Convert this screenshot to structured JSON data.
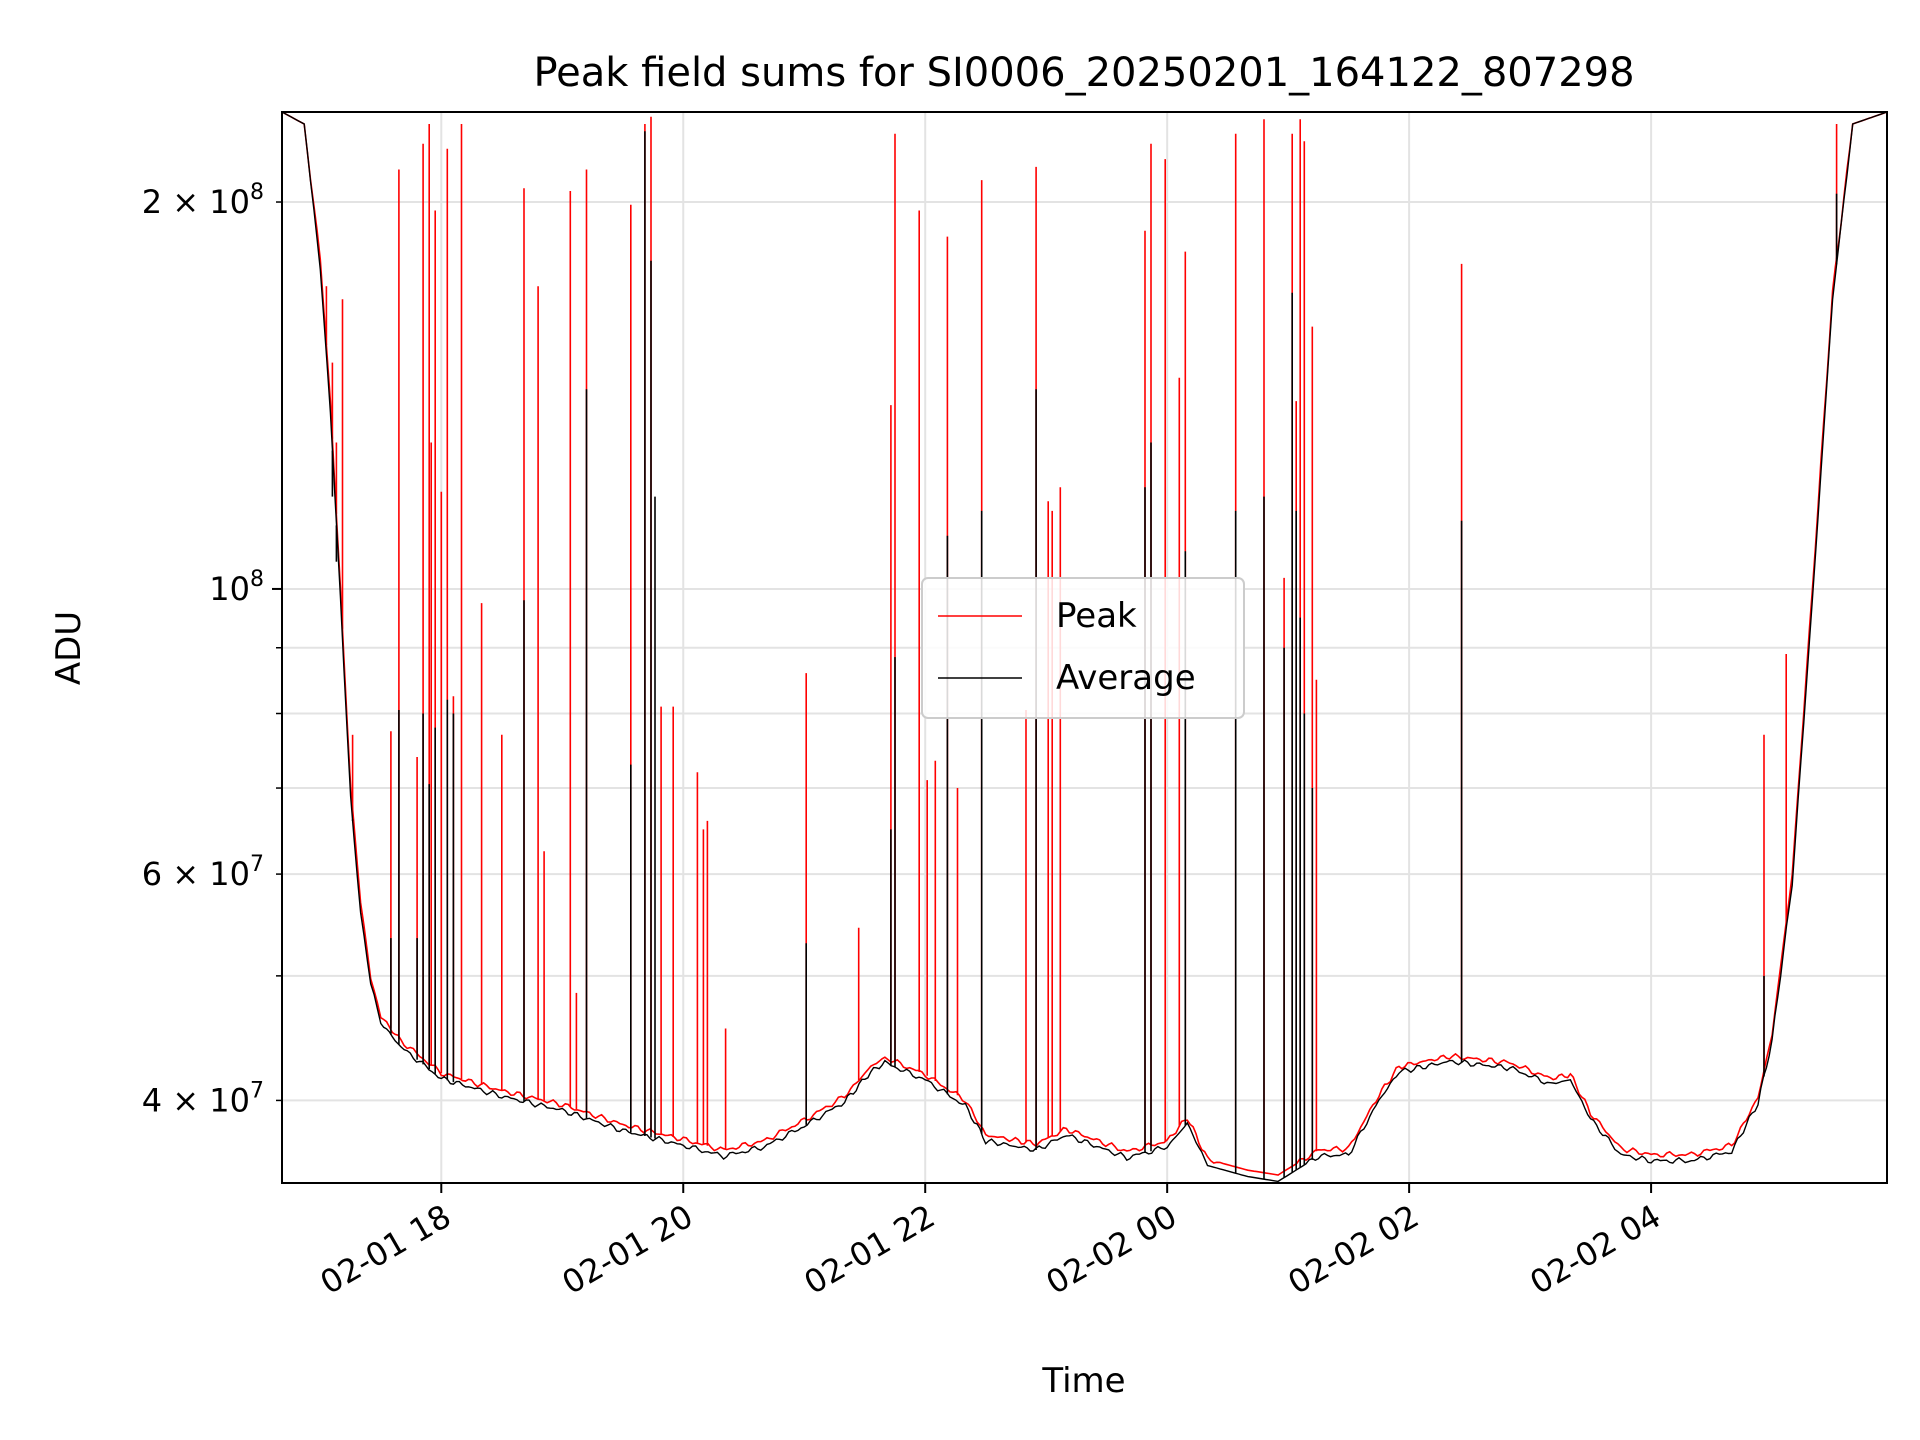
{
  "chart_data": {
    "type": "line",
    "title": "Peak field sums for SI0006_20250201_164122_807298",
    "xlabel": "Time",
    "ylabel": "ADU",
    "yscale": "log",
    "ylim": [
      34500000,
      235000000
    ],
    "xlim": [
      "2025-02-01 16:41",
      "2025-02-02 05:57"
    ],
    "grid": true,
    "legend_position": "center",
    "x_ticks": [
      {
        "label": "02-01 18",
        "value": "2025-02-01 18:00"
      },
      {
        "label": "02-01 20",
        "value": "2025-02-01 20:00"
      },
      {
        "label": "02-01 22",
        "value": "2025-02-01 22:00"
      },
      {
        "label": "02-02 00",
        "value": "2025-02-02 00:00"
      },
      {
        "label": "02-02 02",
        "value": "2025-02-02 02:00"
      },
      {
        "label": "02-02 04",
        "value": "2025-02-02 04:00"
      }
    ],
    "y_ticks_major": [
      {
        "label_mantissa": "10",
        "label_exp": "8",
        "label": "10^8",
        "value": 100000000
      }
    ],
    "y_ticks_minor": [
      {
        "label_mantissa": "4 × 10",
        "label_exp": "7",
        "value": 40000000
      },
      {
        "label_mantissa": "6 × 10",
        "label_exp": "7",
        "value": 60000000
      },
      {
        "label_mantissa": "2 × 10",
        "label_exp": "8",
        "value": 200000000
      }
    ],
    "series": [
      {
        "name": "Peak",
        "color": "#ff0000",
        "baseline": [
          [
            "2025-02-01 16:41",
            235000000
          ],
          [
            "2025-02-01 16:52",
            230000000
          ],
          [
            "2025-02-01 17:00",
            180000000
          ],
          [
            "2025-02-01 17:05",
            140000000
          ],
          [
            "2025-02-01 17:10",
            100000000
          ],
          [
            "2025-02-01 17:15",
            70000000
          ],
          [
            "2025-02-01 17:20",
            57000000
          ],
          [
            "2025-02-01 17:25",
            50000000
          ],
          [
            "2025-02-01 17:30",
            46500000
          ],
          [
            "2025-02-01 17:40",
            44500000
          ],
          [
            "2025-02-01 18:00",
            42000000
          ],
          [
            "2025-02-01 18:30",
            40700000
          ],
          [
            "2025-02-01 19:00",
            39700000
          ],
          [
            "2025-02-01 19:30",
            38300000
          ],
          [
            "2025-02-01 20:00",
            37300000
          ],
          [
            "2025-02-01 20:20",
            36600000
          ],
          [
            "2025-02-01 20:40",
            37200000
          ],
          [
            "2025-02-01 21:00",
            38600000
          ],
          [
            "2025-02-01 21:20",
            40300000
          ],
          [
            "2025-02-01 21:33",
            42500000
          ],
          [
            "2025-02-01 21:40",
            43200000
          ],
          [
            "2025-02-01 22:00",
            41900000
          ],
          [
            "2025-02-01 22:20",
            40000000
          ],
          [
            "2025-02-01 22:30",
            37600000
          ],
          [
            "2025-02-01 22:55",
            37000000
          ],
          [
            "2025-02-01 23:10",
            38000000
          ],
          [
            "2025-02-01 23:40",
            36500000
          ],
          [
            "2025-02-02 00:00",
            37200000
          ],
          [
            "2025-02-02 00:10",
            38800000
          ],
          [
            "2025-02-02 00:20",
            36000000
          ],
          [
            "2025-02-02 00:40",
            35300000
          ],
          [
            "2025-02-02 00:55",
            35000000
          ],
          [
            "2025-02-02 01:15",
            36600000
          ],
          [
            "2025-02-02 01:30",
            36700000
          ],
          [
            "2025-02-02 01:45",
            40400000
          ],
          [
            "2025-02-02 01:55",
            42500000
          ],
          [
            "2025-02-02 02:20",
            43300000
          ],
          [
            "2025-02-02 02:50",
            42800000
          ],
          [
            "2025-02-02 03:10",
            41600000
          ],
          [
            "2025-02-02 03:20",
            41900000
          ],
          [
            "2025-02-02 03:30",
            39100000
          ],
          [
            "2025-02-02 03:45",
            36700000
          ],
          [
            "2025-02-02 04:00",
            36300000
          ],
          [
            "2025-02-02 04:20",
            36300000
          ],
          [
            "2025-02-02 04:40",
            36900000
          ],
          [
            "2025-02-02 04:53",
            40200000
          ],
          [
            "2025-02-02 05:00",
            45000000
          ],
          [
            "2025-02-02 05:10",
            60000000
          ],
          [
            "2025-02-02 05:20",
            100000000
          ],
          [
            "2025-02-02 05:30",
            170000000
          ],
          [
            "2025-02-02 05:40",
            230000000
          ],
          [
            "2025-02-02 05:57",
            235000000
          ]
        ],
        "spikes": [
          [
            "2025-02-01 17:03",
            172000000
          ],
          [
            "2025-02-01 17:06",
            150000000
          ],
          [
            "2025-02-01 17:08",
            130000000
          ],
          [
            "2025-02-01 17:11",
            168000000
          ],
          [
            "2025-02-01 17:16",
            77000000
          ],
          [
            "2025-02-01 17:35",
            77500000
          ],
          [
            "2025-02-01 17:39",
            212000000
          ],
          [
            "2025-02-01 17:48",
            74000000
          ],
          [
            "2025-02-01 17:51",
            222000000
          ],
          [
            "2025-02-01 17:54",
            230000000
          ],
          [
            "2025-02-01 17:55",
            130000000
          ],
          [
            "2025-02-01 17:57",
            197000000
          ],
          [
            "2025-02-01 18:00",
            119000000
          ],
          [
            "2025-02-01 18:03",
            220000000
          ],
          [
            "2025-02-01 18:06",
            82500000
          ],
          [
            "2025-02-01 18:10",
            230000000
          ],
          [
            "2025-02-01 18:20",
            97500000
          ],
          [
            "2025-02-01 18:30",
            77000000
          ],
          [
            "2025-02-01 18:41",
            205000000
          ],
          [
            "2025-02-01 18:48",
            172000000
          ],
          [
            "2025-02-01 18:51",
            62500000
          ],
          [
            "2025-02-01 19:04",
            204000000
          ],
          [
            "2025-02-01 19:07",
            48500000
          ],
          [
            "2025-02-01 19:12",
            212000000
          ],
          [
            "2025-02-01 19:34",
            199000000
          ],
          [
            "2025-02-01 19:41",
            230000000
          ],
          [
            "2025-02-01 19:44",
            233000000
          ],
          [
            "2025-02-01 19:49",
            81000000
          ],
          [
            "2025-02-01 19:55",
            81000000
          ],
          [
            "2025-02-01 20:07",
            72000000
          ],
          [
            "2025-02-01 20:10",
            65000000
          ],
          [
            "2025-02-01 20:12",
            66000000
          ],
          [
            "2025-02-01 20:21",
            45500000
          ],
          [
            "2025-02-01 21:01",
            86000000
          ],
          [
            "2025-02-01 21:27",
            54500000
          ],
          [
            "2025-02-01 21:43",
            139000000
          ],
          [
            "2025-02-01 21:45",
            226000000
          ],
          [
            "2025-02-01 21:57",
            197000000
          ],
          [
            "2025-02-01 22:01",
            71000000
          ],
          [
            "2025-02-01 22:05",
            73500000
          ],
          [
            "2025-02-01 22:11",
            188000000
          ],
          [
            "2025-02-01 22:16",
            70000000
          ],
          [
            "2025-02-01 22:28",
            208000000
          ],
          [
            "2025-02-01 22:50",
            80500000
          ],
          [
            "2025-02-01 22:55",
            213000000
          ],
          [
            "2025-02-01 23:01",
            117000000
          ],
          [
            "2025-02-01 23:03",
            115000000
          ],
          [
            "2025-02-01 23:07",
            120000000
          ],
          [
            "2025-02-01 23:49",
            190000000
          ],
          [
            "2025-02-01 23:52",
            222000000
          ],
          [
            "2025-02-01 23:59",
            216000000
          ],
          [
            "2025-02-02 00:06",
            146000000
          ],
          [
            "2025-02-02 00:09",
            183000000
          ],
          [
            "2025-02-02 00:34",
            226000000
          ],
          [
            "2025-02-02 00:48",
            232000000
          ],
          [
            "2025-02-02 00:58",
            102000000
          ],
          [
            "2025-02-02 01:02",
            226000000
          ],
          [
            "2025-02-02 01:04",
            140000000
          ],
          [
            "2025-02-02 01:06",
            232000000
          ],
          [
            "2025-02-02 01:08",
            223000000
          ],
          [
            "2025-02-02 01:12",
            160000000
          ],
          [
            "2025-02-02 01:14",
            85000000
          ],
          [
            "2025-02-02 02:26",
            179000000
          ],
          [
            "2025-02-02 04:56",
            77000000
          ],
          [
            "2025-02-02 05:07",
            89000000
          ],
          [
            "2025-02-02 05:32",
            230000000
          ]
        ]
      },
      {
        "name": "Average",
        "color": "#000000",
        "baseline": [
          [
            "2025-02-01 16:41",
            235000000
          ],
          [
            "2025-02-01 16:52",
            230000000
          ],
          [
            "2025-02-01 17:00",
            178000000
          ],
          [
            "2025-02-01 17:05",
            137000000
          ],
          [
            "2025-02-01 17:10",
            98000000
          ],
          [
            "2025-02-01 17:15",
            69000000
          ],
          [
            "2025-02-01 17:20",
            56000000
          ],
          [
            "2025-02-01 17:25",
            49200000
          ],
          [
            "2025-02-01 17:30",
            46000000
          ],
          [
            "2025-02-01 17:40",
            44000000
          ],
          [
            "2025-02-01 18:00",
            41600000
          ],
          [
            "2025-02-01 18:30",
            40300000
          ],
          [
            "2025-02-01 19:00",
            39300000
          ],
          [
            "2025-02-01 19:30",
            37900000
          ],
          [
            "2025-02-01 20:00",
            36900000
          ],
          [
            "2025-02-01 20:20",
            36200000
          ],
          [
            "2025-02-01 20:40",
            36800000
          ],
          [
            "2025-02-01 21:00",
            38200000
          ],
          [
            "2025-02-01 21:20",
            39900000
          ],
          [
            "2025-02-01 21:33",
            42100000
          ],
          [
            "2025-02-01 21:40",
            42800000
          ],
          [
            "2025-02-01 22:00",
            41500000
          ],
          [
            "2025-02-01 22:20",
            39600000
          ],
          [
            "2025-02-01 22:30",
            37200000
          ],
          [
            "2025-02-01 22:55",
            36600000
          ],
          [
            "2025-02-01 23:10",
            37600000
          ],
          [
            "2025-02-01 23:40",
            36100000
          ],
          [
            "2025-02-02 00:00",
            36800000
          ],
          [
            "2025-02-02 00:10",
            38400000
          ],
          [
            "2025-02-02 00:20",
            35600000
          ],
          [
            "2025-02-02 00:40",
            34900000
          ],
          [
            "2025-02-02 00:55",
            34600000
          ],
          [
            "2025-02-02 01:15",
            36200000
          ],
          [
            "2025-02-02 01:30",
            36300000
          ],
          [
            "2025-02-02 01:45",
            40000000
          ],
          [
            "2025-02-02 01:55",
            42100000
          ],
          [
            "2025-02-02 02:20",
            42900000
          ],
          [
            "2025-02-02 02:50",
            42400000
          ],
          [
            "2025-02-02 03:10",
            41200000
          ],
          [
            "2025-02-02 03:20",
            41500000
          ],
          [
            "2025-02-02 03:30",
            38700000
          ],
          [
            "2025-02-02 03:45",
            36300000
          ],
          [
            "2025-02-02 04:00",
            35900000
          ],
          [
            "2025-02-02 04:20",
            35900000
          ],
          [
            "2025-02-02 04:40",
            36500000
          ],
          [
            "2025-02-02 04:53",
            39800000
          ],
          [
            "2025-02-02 05:00",
            44500000
          ],
          [
            "2025-02-02 05:10",
            59000000
          ],
          [
            "2025-02-02 05:20",
            98000000
          ],
          [
            "2025-02-02 05:30",
            168000000
          ],
          [
            "2025-02-02 05:40",
            230000000
          ],
          [
            "2025-02-02 05:57",
            235000000
          ]
        ],
        "spikes": [
          [
            "2025-02-01 17:06",
            118000000
          ],
          [
            "2025-02-01 17:08",
            105000000
          ],
          [
            "2025-02-01 17:16",
            66000000
          ],
          [
            "2025-02-01 17:35",
            53500000
          ],
          [
            "2025-02-01 17:39",
            80500000
          ],
          [
            "2025-02-01 17:48",
            53500000
          ],
          [
            "2025-02-01 17:51",
            80000000
          ],
          [
            "2025-02-01 17:54",
            70500000
          ],
          [
            "2025-02-01 17:57",
            78000000
          ],
          [
            "2025-02-01 18:03",
            82000000
          ],
          [
            "2025-02-01 18:06",
            80000000
          ],
          [
            "2025-02-01 18:41",
            98000000
          ],
          [
            "2025-02-01 19:12",
            143000000
          ],
          [
            "2025-02-01 19:34",
            73000000
          ],
          [
            "2025-02-01 19:41",
            227000000
          ],
          [
            "2025-02-01 19:44",
            180000000
          ],
          [
            "2025-02-01 19:46",
            118000000
          ],
          [
            "2025-02-01 21:01",
            53000000
          ],
          [
            "2025-02-01 21:43",
            65000000
          ],
          [
            "2025-02-01 21:45",
            88500000
          ],
          [
            "2025-02-01 22:11",
            110000000
          ],
          [
            "2025-02-01 22:28",
            115000000
          ],
          [
            "2025-02-01 22:55",
            143000000
          ],
          [
            "2025-02-01 23:49",
            120000000
          ],
          [
            "2025-02-01 23:52",
            130000000
          ],
          [
            "2025-02-02 00:09",
            107000000
          ],
          [
            "2025-02-02 00:34",
            115000000
          ],
          [
            "2025-02-02 00:48",
            118000000
          ],
          [
            "2025-02-02 00:58",
            90000000
          ],
          [
            "2025-02-02 01:02",
            170000000
          ],
          [
            "2025-02-02 01:04",
            115000000
          ],
          [
            "2025-02-02 01:06",
            95000000
          ],
          [
            "2025-02-02 01:08",
            80000000
          ],
          [
            "2025-02-02 01:12",
            70000000
          ],
          [
            "2025-02-02 02:26",
            113000000
          ],
          [
            "2025-02-02 04:56",
            50000000
          ],
          [
            "2025-02-02 05:32",
            203000000
          ]
        ]
      }
    ]
  }
}
